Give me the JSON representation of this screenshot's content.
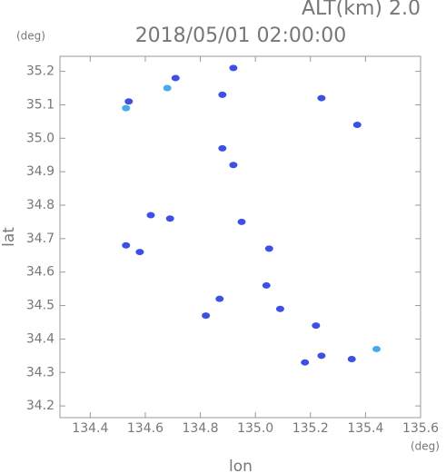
{
  "chart_data": {
    "type": "scatter",
    "title": "2018/05/01 02:00:00",
    "subtitle": "ALT(km) 2.0",
    "x_label": "lon",
    "y_label": "lat",
    "x_unit": "(deg)",
    "y_unit": "(deg)",
    "xlim": [
      134.29,
      135.6
    ],
    "ylim": [
      34.165,
      35.245
    ],
    "xticks": [
      134.4,
      134.6,
      134.8,
      {
        "value": 135.0,
        "label": "135.0"
      },
      135.2,
      135.4,
      135.6
    ],
    "yticks": [
      34.2,
      34.3,
      34.4,
      34.5,
      34.6,
      34.7,
      34.8,
      34.9,
      {
        "value": 35.0,
        "label": "35.0"
      },
      35.1,
      35.2
    ],
    "series": [
      {
        "color": "#3c50e6",
        "x": [
          134.54,
          134.71,
          134.92,
          134.88,
          135.24,
          134.88,
          134.92,
          134.62,
          134.69,
          134.53,
          134.58,
          135.05,
          135.04,
          134.87,
          134.82,
          135.09,
          135.22,
          135.18,
          135.24,
          135.35,
          134.95,
          135.37
        ],
        "values": [
          35.11,
          35.18,
          35.21,
          35.13,
          35.12,
          34.97,
          34.92,
          34.77,
          34.76,
          34.68,
          34.66,
          34.67,
          34.56,
          34.52,
          34.47,
          34.49,
          34.44,
          34.33,
          34.35,
          34.34,
          34.75,
          35.04
        ]
      },
      {
        "color": "#46aaf0",
        "x": [
          134.53,
          134.68,
          135.44
        ],
        "values": [
          35.09,
          35.15,
          34.37
        ]
      }
    ]
  }
}
